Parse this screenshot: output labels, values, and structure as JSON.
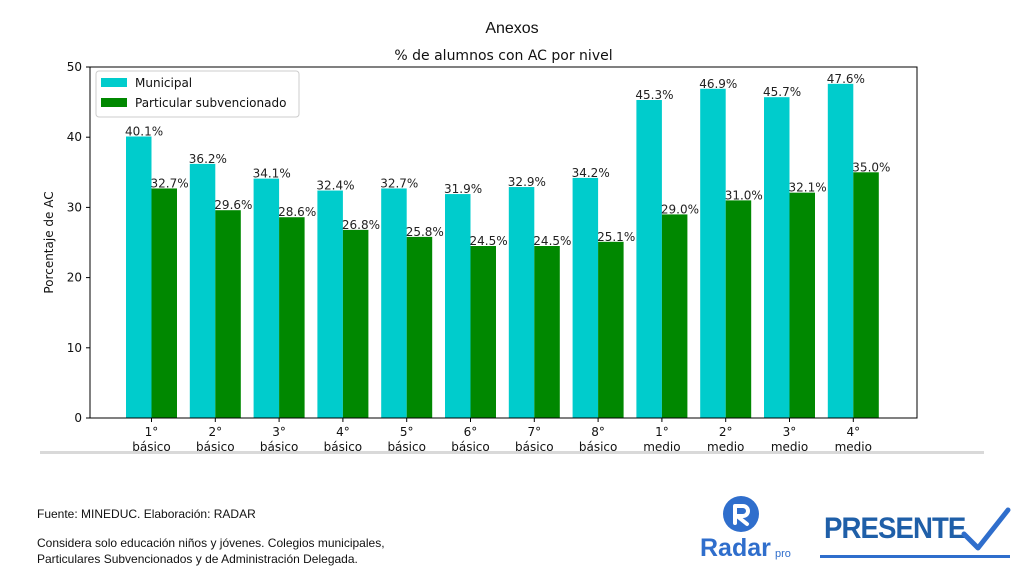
{
  "slide": {
    "title": "Anexos",
    "source": "Fuente: MINEDUC. Elaboración: RADAR",
    "note_line1": "Considera solo educación niños y jóvenes. Colegios municipales,",
    "note_line2": "Particulares Subvencionados y de Administración Delegada."
  },
  "logos": {
    "radar_word": "Radar",
    "radar_suffix": "pro",
    "presente": "PRESENTE"
  },
  "chart_data": {
    "type": "bar",
    "title": "% de alumnos con AC por nivel",
    "ylabel": "Porcentaje de AC",
    "xlabel": "",
    "ylim": [
      0,
      50
    ],
    "yticks": [
      0,
      10,
      20,
      30,
      40,
      50
    ],
    "grid": false,
    "legend_position": "top-left",
    "categories": [
      "1° básico",
      "2° básico",
      "3° básico",
      "4° básico",
      "5° básico",
      "6° básico",
      "7° básico",
      "8° básico",
      "1° medio",
      "2° medio",
      "3° medio",
      "4° medio"
    ],
    "category_lines": [
      [
        "1°",
        "básico"
      ],
      [
        "2°",
        "básico"
      ],
      [
        "3°",
        "básico"
      ],
      [
        "4°",
        "básico"
      ],
      [
        "5°",
        "básico"
      ],
      [
        "6°",
        "básico"
      ],
      [
        "7°",
        "básico"
      ],
      [
        "8°",
        "básico"
      ],
      [
        "1°",
        "medio"
      ],
      [
        "2°",
        "medio"
      ],
      [
        "3°",
        "medio"
      ],
      [
        "4°",
        "medio"
      ]
    ],
    "series": [
      {
        "name": "Municipal",
        "color": "#00cccc",
        "values": [
          40.1,
          36.2,
          34.1,
          32.4,
          32.7,
          31.9,
          32.9,
          34.2,
          45.3,
          46.9,
          45.7,
          47.6
        ],
        "labels": [
          "40.1%",
          "36.2%",
          "34.1%",
          "32.4%",
          "32.7%",
          "31.9%",
          "32.9%",
          "34.2%",
          "45.3%",
          "46.9%",
          "45.7%",
          "47.6%"
        ]
      },
      {
        "name": "Particular subvencionado",
        "color": "#008800",
        "values": [
          32.7,
          29.6,
          28.6,
          26.8,
          25.8,
          24.5,
          24.5,
          25.1,
          29.0,
          31.0,
          32.1,
          35.0
        ],
        "labels": [
          "32.7%",
          "29.6%",
          "28.6%",
          "26.8%",
          "25.8%",
          "24.5%",
          "24.5%",
          "25.1%",
          "29.0%",
          "31.0%",
          "32.1%",
          "35.0%"
        ]
      }
    ]
  }
}
